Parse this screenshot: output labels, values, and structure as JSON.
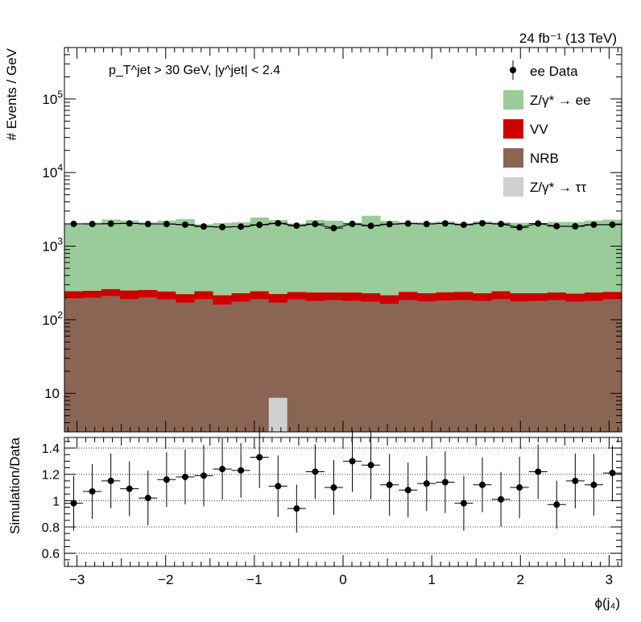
{
  "chart_data": [
    {
      "type": "bar",
      "stacked": true,
      "log_y": true,
      "ylabel": "# Events / GeV",
      "ylim": [
        3.0,
        500000
      ],
      "xlim": [
        -3.1416,
        3.1416
      ],
      "top_right_label": "24 fb⁻¹ (13 TeV)",
      "cuts_label": "p_T^jet > 30 GeV, |y^jet| < 2.4",
      "yticks": [
        {
          "value": 10,
          "base": "10",
          "exp": ""
        },
        {
          "value": 100,
          "base": "10",
          "exp": "2"
        },
        {
          "value": 1000,
          "base": "10",
          "exp": "3"
        },
        {
          "value": 10000,
          "base": "10",
          "exp": "4"
        },
        {
          "value": 100000,
          "base": "10",
          "exp": "5"
        }
      ],
      "bin_edges_range": [
        -3.1416,
        3.1416
      ],
      "n_bins": 30,
      "series": [
        {
          "name": "NRB",
          "color": "#8b6554",
          "values": [
            195,
            198,
            210,
            190,
            200,
            188,
            170,
            190,
            160,
            175,
            190,
            170,
            188,
            180,
            185,
            180,
            175,
            165,
            185,
            178,
            182,
            185,
            180,
            190,
            178,
            180,
            185,
            175,
            180,
            190
          ]
        },
        {
          "name": "VV",
          "color": "#cc0000",
          "values": [
            50,
            50,
            52,
            60,
            55,
            55,
            53,
            55,
            55,
            55,
            55,
            55,
            50,
            55,
            50,
            55,
            55,
            50,
            55,
            52,
            55,
            55,
            50,
            55,
            52,
            50,
            50,
            52,
            55,
            50
          ]
        },
        {
          "name": "Z/γ* → ττ",
          "color": "#d0d0d0",
          "values": [
            0,
            0,
            0,
            0,
            0,
            0,
            0,
            0,
            0,
            0,
            0,
            8.7,
            0,
            0,
            0,
            0,
            0,
            0,
            0,
            0,
            0,
            0,
            0,
            0,
            0,
            0,
            0,
            0,
            0,
            0
          ]
        },
        {
          "name": "Z/γ* → ee",
          "color": "#99cc99",
          "values": [
            1715,
            1845,
            2040,
            1980,
            1860,
            1980,
            2105,
            1740,
            1850,
            1880,
            2205,
            2040,
            1790,
            2040,
            1985,
            1845,
            2360,
            2000,
            1885,
            1890,
            1935,
            1815,
            1955,
            1860,
            1850,
            1795,
            1900,
            1910,
            1995,
            2050
          ]
        },
        {
          "name": "ee Data",
          "color": "#000000",
          "values": [
            2010,
            2000,
            2020,
            2040,
            2000,
            2000,
            1960,
            1850,
            1820,
            1840,
            1950,
            2050,
            1900,
            2000,
            1760,
            2010,
            1890,
            1990,
            2030,
            2000,
            2040,
            1950,
            2050,
            2000,
            1800,
            2030,
            1870,
            1860,
            1960,
            1960
          ]
        }
      ],
      "legend": {
        "position": "top-right",
        "entries": [
          {
            "label": "ee Data",
            "kind": "marker",
            "color": "#000000"
          },
          {
            "label": "Z/γ* → ee",
            "kind": "box",
            "color": "#99cc99"
          },
          {
            "label": "VV",
            "kind": "box",
            "color": "#cc0000"
          },
          {
            "label": "NRB",
            "kind": "box",
            "color": "#8b6554"
          },
          {
            "label": "Z/γ* → ττ",
            "kind": "box",
            "color": "#d0d0d0"
          }
        ]
      }
    },
    {
      "type": "scatter",
      "xlabel": "ϕ(j₄)",
      "ylabel": "Simulation/Data",
      "xlim": [
        -3.1416,
        3.1416
      ],
      "ylim": [
        0.5,
        1.48
      ],
      "grid_y": [
        0.6,
        0.8,
        1.0,
        1.2,
        1.4
      ],
      "yticks": [
        "0.6",
        "0.8",
        "1",
        "1.2",
        "1.4"
      ],
      "xticks": [
        {
          "value": -3,
          "label": "−3"
        },
        {
          "value": -2,
          "label": "−2"
        },
        {
          "value": -1,
          "label": "−1"
        },
        {
          "value": 0,
          "label": "0"
        },
        {
          "value": 1,
          "label": "1"
        },
        {
          "value": 2,
          "label": "2"
        },
        {
          "value": 3,
          "label": "3"
        }
      ],
      "ratio": [
        0.98,
        1.07,
        1.15,
        1.09,
        1.02,
        1.16,
        1.18,
        1.19,
        1.24,
        1.23,
        1.33,
        1.11,
        0.94,
        1.22,
        1.1,
        1.3,
        1.27,
        1.12,
        1.08,
        1.13,
        1.14,
        0.98,
        1.12,
        1.01,
        1.1,
        1.22,
        0.97,
        1.15,
        1.12,
        1.21
      ],
      "error": [
        0.08,
        0.08,
        0.08,
        0.08,
        0.08,
        0.08,
        0.08,
        0.09,
        0.09,
        0.08,
        0.09,
        0.09,
        0.07,
        0.08,
        0.08,
        0.09,
        0.1,
        0.09,
        0.08,
        0.08,
        0.09,
        0.08,
        0.08,
        0.08,
        0.09,
        0.08,
        0.07,
        0.08,
        0.09,
        0.08
      ]
    }
  ]
}
